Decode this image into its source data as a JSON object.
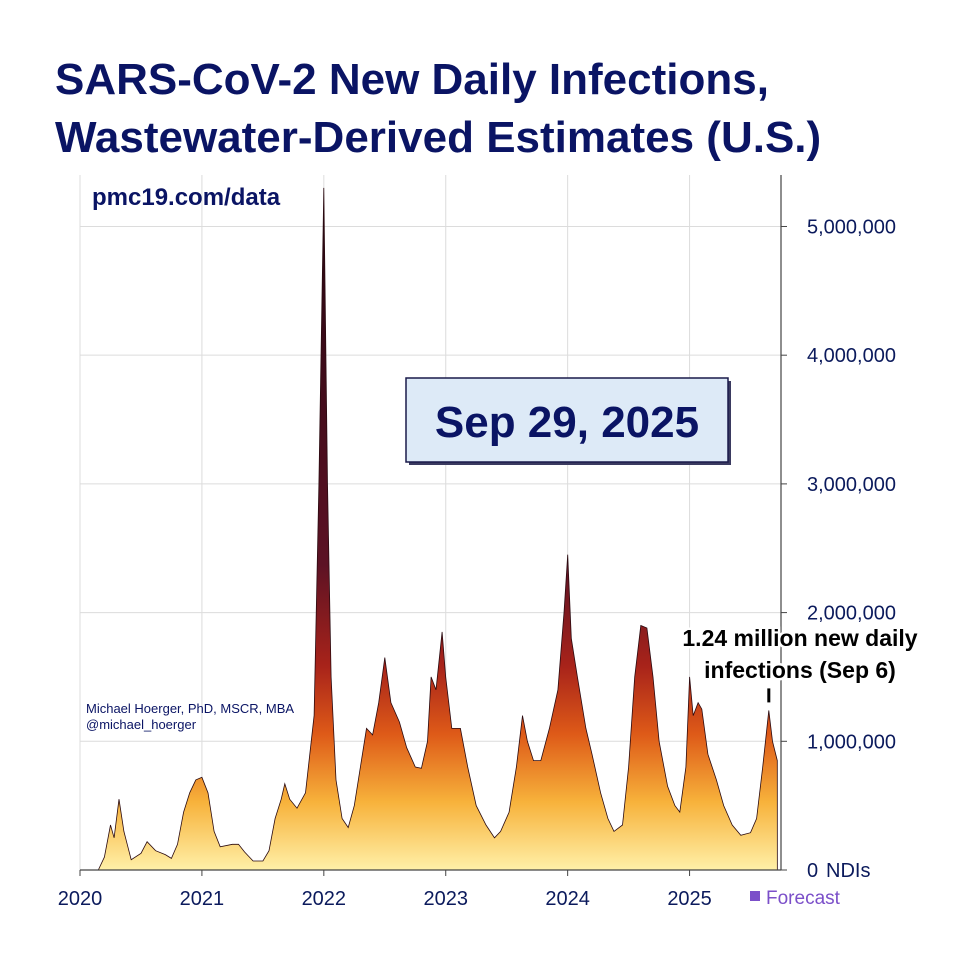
{
  "chart_data": {
    "type": "area",
    "title": [
      "SARS-CoV-2 New Daily Infections,",
      "Wastewater-Derived Estimates (U.S.)"
    ],
    "source": "pmc19.com/data",
    "date_label": "Sep 29, 2025",
    "author": [
      "Michael Hoerger, PhD, MSCR, MBA",
      "@michael_hoerger"
    ],
    "annotation": {
      "text": [
        "1.24 million new daily",
        "infections (Sep 6)"
      ],
      "x": 2025.65,
      "value": 1240000
    },
    "y_unit_label": "NDIs",
    "legend": {
      "label": "Forecast",
      "color": "#7b4fc9"
    },
    "grid": true,
    "xlim": [
      2020,
      2025.75
    ],
    "xticks": [
      2020,
      2021,
      2022,
      2023,
      2024,
      2025
    ],
    "ylim": [
      0,
      5400000
    ],
    "yticks": [
      0,
      {
        "value": 1000000,
        "label": "1,000,000"
      },
      {
        "value": 2000000,
        "label": "2,000,000"
      },
      {
        "value": 3000000,
        "label": "3,000,000"
      },
      {
        "value": 4000000,
        "label": "4,000,000"
      },
      {
        "value": 5000000,
        "label": "5,000,000"
      }
    ],
    "x": [
      2020.15,
      2020.2,
      2020.25,
      2020.28,
      2020.32,
      2020.36,
      2020.42,
      2020.5,
      2020.55,
      2020.62,
      2020.7,
      2020.75,
      2020.8,
      2020.85,
      2020.9,
      2020.95,
      2021.0,
      2021.05,
      2021.1,
      2021.15,
      2021.25,
      2021.3,
      2021.35,
      2021.42,
      2021.5,
      2021.55,
      2021.6,
      2021.65,
      2021.68,
      2021.72,
      2021.78,
      2021.85,
      2021.92,
      2021.96,
      2022.0,
      2022.03,
      2022.06,
      2022.1,
      2022.15,
      2022.2,
      2022.25,
      2022.3,
      2022.35,
      2022.4,
      2022.45,
      2022.5,
      2022.55,
      2022.62,
      2022.68,
      2022.75,
      2022.8,
      2022.85,
      2022.88,
      2022.92,
      2022.97,
      2023.0,
      2023.05,
      2023.12,
      2023.18,
      2023.25,
      2023.33,
      2023.4,
      2023.45,
      2023.52,
      2023.58,
      2023.63,
      2023.67,
      2023.72,
      2023.78,
      2023.85,
      2023.92,
      2023.97,
      2024.0,
      2024.03,
      2024.08,
      2024.15,
      2024.2,
      2024.27,
      2024.33,
      2024.38,
      2024.45,
      2024.5,
      2024.55,
      2024.6,
      2024.65,
      2024.7,
      2024.75,
      2024.82,
      2024.88,
      2024.92,
      2024.97,
      2025.0,
      2025.03,
      2025.07,
      2025.1,
      2025.15,
      2025.22,
      2025.28,
      2025.35,
      2025.42,
      2025.5,
      2025.55,
      2025.6,
      2025.65,
      2025.68,
      2025.72
    ],
    "values": [
      0,
      100000,
      350000,
      250000,
      550000,
      300000,
      80000,
      130000,
      220000,
      150000,
      120000,
      90000,
      200000,
      450000,
      600000,
      700000,
      720000,
      600000,
      300000,
      180000,
      200000,
      200000,
      140000,
      70000,
      70000,
      150000,
      400000,
      550000,
      670000,
      550000,
      480000,
      600000,
      1200000,
      3000000,
      5300000,
      3000000,
      1500000,
      700000,
      400000,
      330000,
      500000,
      800000,
      1100000,
      1050000,
      1300000,
      1650000,
      1300000,
      1150000,
      950000,
      800000,
      790000,
      1000000,
      1500000,
      1400000,
      1850000,
      1500000,
      1100000,
      1100000,
      800000,
      500000,
      350000,
      250000,
      300000,
      450000,
      800000,
      1200000,
      1000000,
      850000,
      850000,
      1100000,
      1400000,
      2000000,
      2450000,
      1800000,
      1500000,
      1100000,
      900000,
      600000,
      400000,
      300000,
      350000,
      800000,
      1500000,
      1900000,
      1880000,
      1500000,
      1000000,
      650000,
      500000,
      450000,
      800000,
      1500000,
      1200000,
      1300000,
      1250000,
      900000,
      700000,
      500000,
      350000,
      270000,
      290000,
      400000,
      800000,
      1240000,
      1000000,
      850000
    ]
  }
}
